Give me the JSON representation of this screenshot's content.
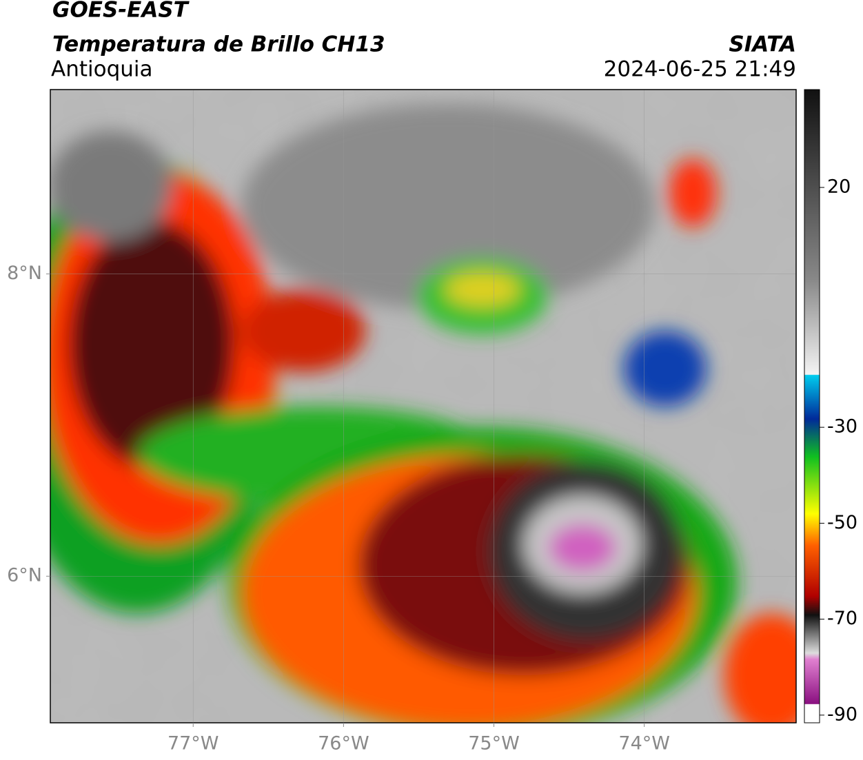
{
  "header": {
    "title": "GOES-EAST",
    "subtitle": "Temperatura de Brillo CH13",
    "region": "Antioquia",
    "source": "SIATA",
    "datetime": "2024-06-25 21:49"
  },
  "map": {
    "xlim": [
      -77.95,
      -72.99
    ],
    "ylim": [
      5.03,
      9.22
    ],
    "xticks": [
      {
        "value": -77,
        "label": "77°W"
      },
      {
        "value": -76,
        "label": "76°W"
      },
      {
        "value": -75,
        "label": "75°W"
      },
      {
        "value": -74,
        "label": "74°W"
      }
    ],
    "yticks": [
      {
        "value": 8,
        "label": "8°N"
      },
      {
        "value": 6,
        "label": "6°N"
      }
    ],
    "grid": true
  },
  "colorbar": {
    "lim": [
      -91.6,
      40.4
    ],
    "ticks": [
      20,
      -30,
      -50,
      -70,
      -90
    ]
  }
}
